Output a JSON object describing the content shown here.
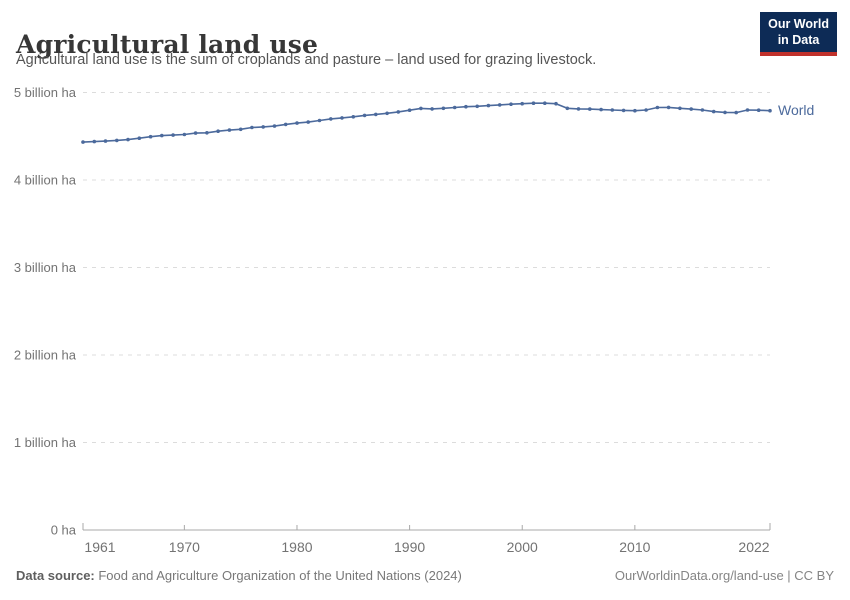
{
  "header": {
    "title": "Agricultural land use",
    "subtitle": "Agricultural land use is the sum of croplands and pasture – land used for grazing livestock.",
    "logo": {
      "line1": "Our World",
      "line2": "in Data"
    }
  },
  "footer": {
    "source_label": "Data source:",
    "source_text": " Food and Agriculture Organization of the United Nations (2024)",
    "credit": "OurWorldinData.org/land-use | CC BY"
  },
  "colors": {
    "line": "#4C6A9C",
    "grid": "#dcdcdc",
    "axis": "#a8a8a8",
    "tick_text": "#737373",
    "logo_bg": "#0d2b56",
    "logo_red": "#c0312b"
  },
  "chart_data": {
    "type": "line",
    "title": "Agricultural land use",
    "unit": "billion ha",
    "xlim": [
      1961,
      2022
    ],
    "ylim": [
      0,
      5
    ],
    "grid": "horizontal-dashed",
    "legend_position": "end-of-line",
    "end_label": "World",
    "yticks": [
      {
        "value": 0,
        "label": "0 ha"
      },
      {
        "value": 1,
        "label": "1 billion ha"
      },
      {
        "value": 2,
        "label": "2 billion ha"
      },
      {
        "value": 3,
        "label": "3 billion ha"
      },
      {
        "value": 4,
        "label": "4 billion ha"
      },
      {
        "value": 5,
        "label": "5 billion ha"
      }
    ],
    "xticks": [
      1961,
      1970,
      1980,
      1990,
      2000,
      2010,
      2022
    ],
    "series": [
      {
        "name": "World",
        "color": "#4C6A9C",
        "x": [
          1961,
          1962,
          1963,
          1964,
          1965,
          1966,
          1967,
          1968,
          1969,
          1970,
          1971,
          1972,
          1973,
          1974,
          1975,
          1976,
          1977,
          1978,
          1979,
          1980,
          1981,
          1982,
          1983,
          1984,
          1985,
          1986,
          1987,
          1988,
          1989,
          1990,
          1991,
          1992,
          1993,
          1994,
          1995,
          1996,
          1997,
          1998,
          1999,
          2000,
          2001,
          2002,
          2003,
          2004,
          2005,
          2006,
          2007,
          2008,
          2009,
          2010,
          2011,
          2012,
          2013,
          2014,
          2015,
          2016,
          2017,
          2018,
          2019,
          2020,
          2021,
          2022
        ],
        "values": [
          4.433,
          4.439,
          4.445,
          4.452,
          4.462,
          4.478,
          4.495,
          4.508,
          4.513,
          4.52,
          4.536,
          4.54,
          4.558,
          4.57,
          4.58,
          4.6,
          4.607,
          4.616,
          4.635,
          4.65,
          4.662,
          4.68,
          4.698,
          4.71,
          4.722,
          4.738,
          4.75,
          4.762,
          4.778,
          4.798,
          4.818,
          4.812,
          4.82,
          4.828,
          4.838,
          4.842,
          4.85,
          4.858,
          4.866,
          4.872,
          4.878,
          4.878,
          4.872,
          4.82,
          4.812,
          4.81,
          4.805,
          4.8,
          4.795,
          4.792,
          4.8,
          4.828,
          4.83,
          4.82,
          4.81,
          4.8,
          4.782,
          4.772,
          4.77,
          4.8,
          4.798,
          4.792
        ]
      }
    ]
  }
}
